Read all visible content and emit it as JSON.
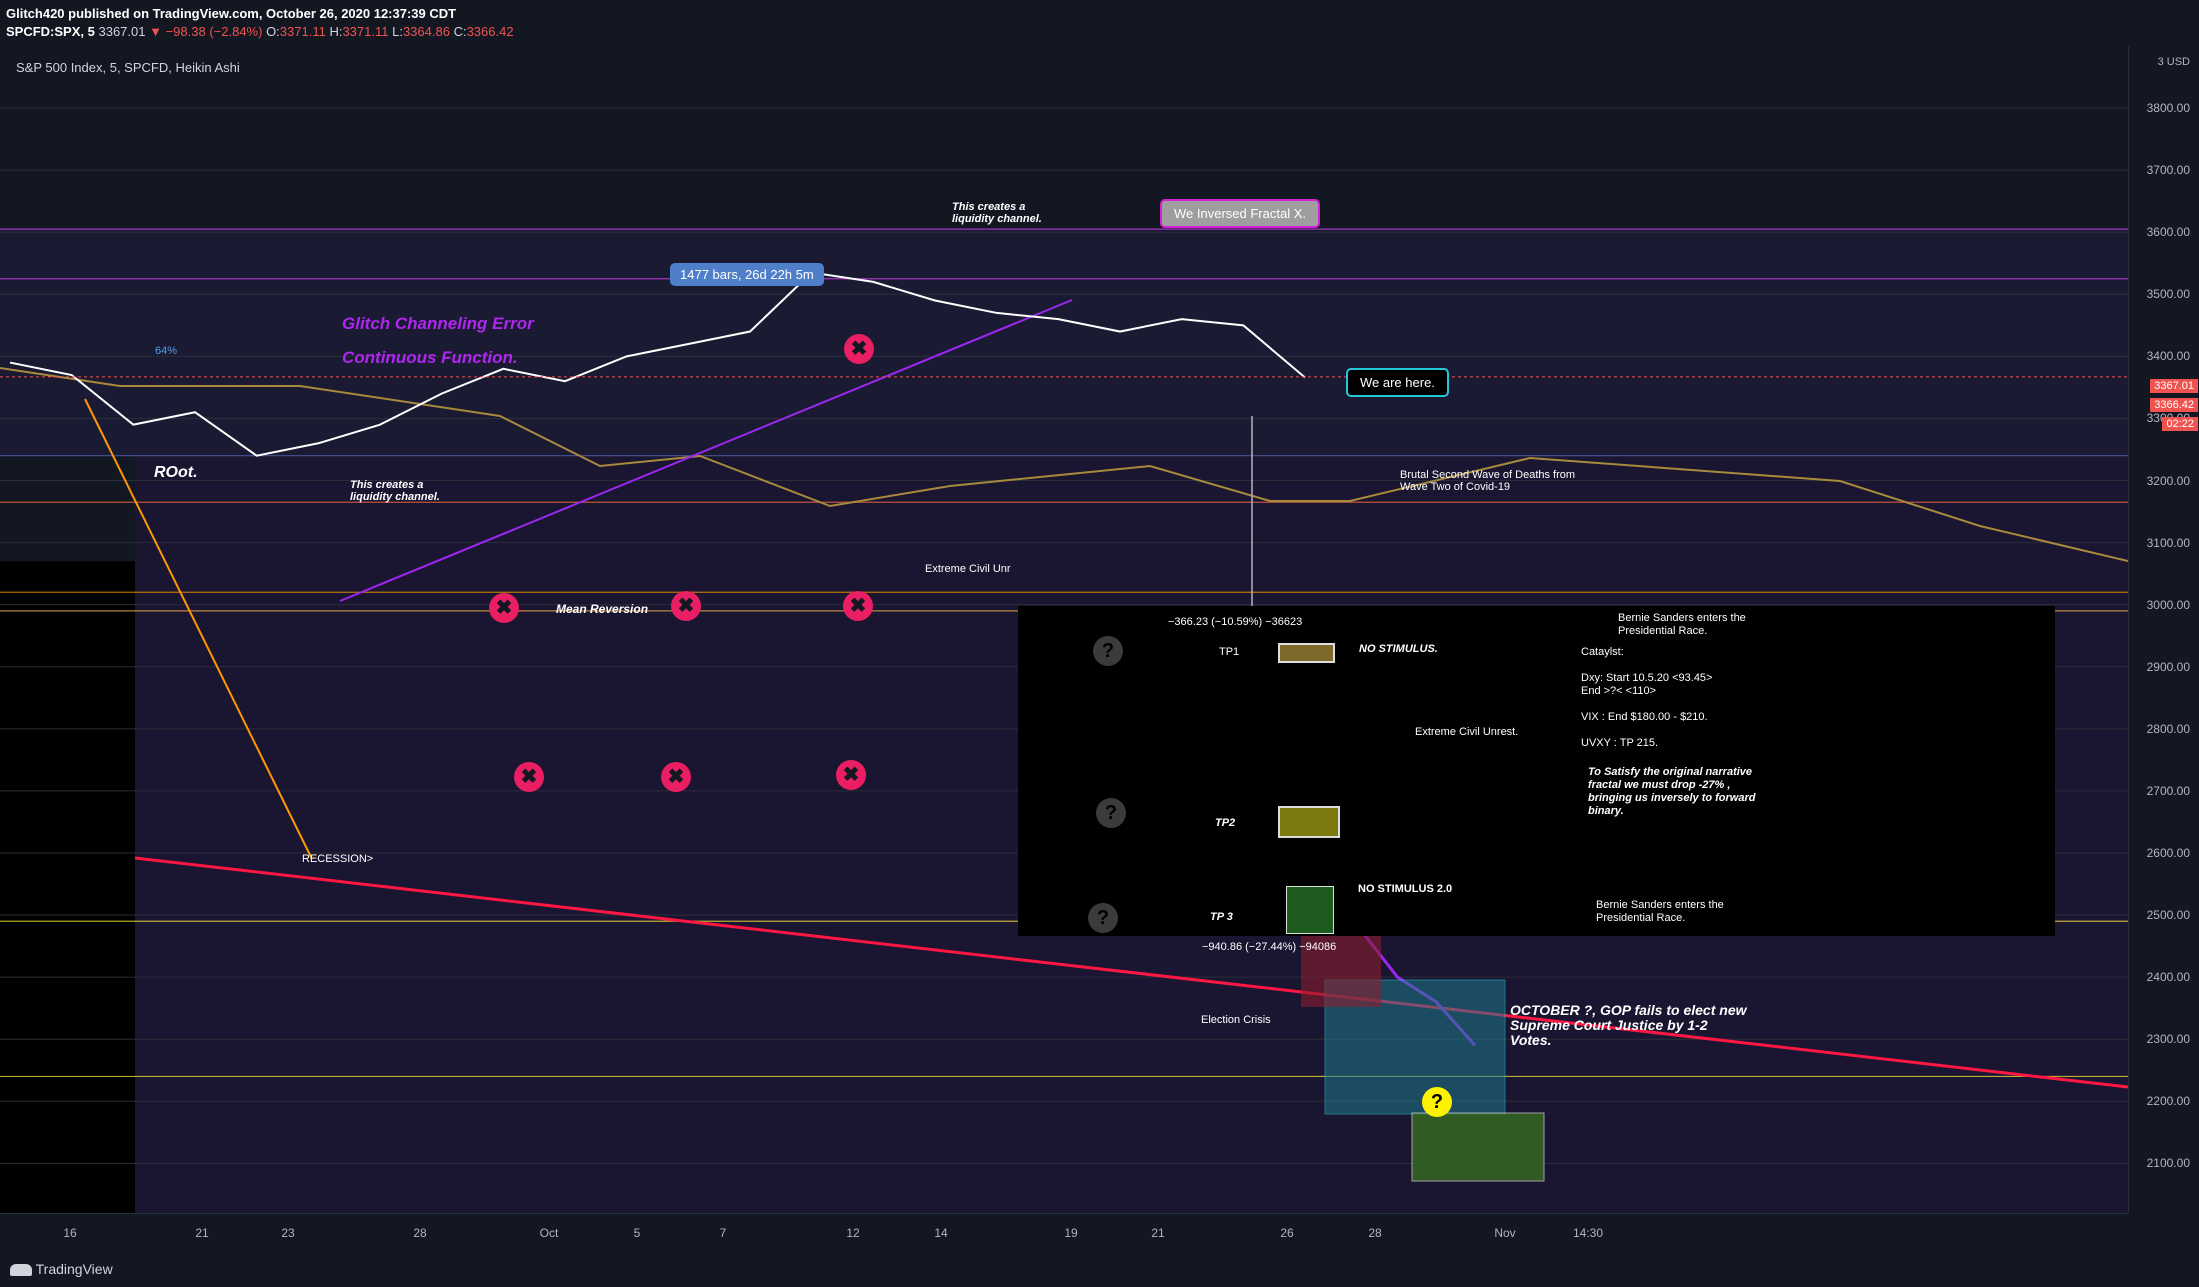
{
  "header": {
    "publisher_line": "Glitch420 published on TradingView.com, October 26, 2020 12:37:39 CDT",
    "symbol": "SPCFD:SPX, 5",
    "last": "3367.01",
    "change": "▼ −98.38 (−2.84%)",
    "o_label": "O:",
    "o_val": "3371.11",
    "h_label": "H:",
    "h_val": "3371.11",
    "l_label": "L:",
    "l_val": "3364.86",
    "c_label": "C:",
    "c_val": "3366.42"
  },
  "chart_title": "S&P 500 Index, 5, SPCFD, Heikin Ashi",
  "chart_data": {
    "type": "line",
    "title": "S&P 500 Index, 5, SPCFD, Heikin Ashi",
    "ylabel": "USD",
    "ylim": [
      2020,
      3900
    ],
    "y_ticks": [
      "3800.00",
      "3700.00",
      "3600.00",
      "3500.00",
      "3400.00",
      "3300.00",
      "3200.00",
      "3100.00",
      "3000.00",
      "2900.00",
      "2800.00",
      "2700.00",
      "2600.00",
      "2500.00",
      "2400.00",
      "2300.00",
      "2200.00",
      "2100.00"
    ],
    "y_tick_values": [
      3800,
      3700,
      3600,
      3500,
      3400,
      3300,
      3200,
      3100,
      3000,
      2900,
      2800,
      2700,
      2600,
      2500,
      2400,
      2300,
      2200,
      2100
    ],
    "x_ticks": [
      "16",
      "21",
      "23",
      "28",
      "Oct",
      "5",
      "7",
      "12",
      "14",
      "19",
      "21",
      "26",
      "28",
      "Nov",
      "14:30"
    ],
    "price_series": {
      "name": "SPX",
      "x": [
        "Sep 16",
        "Sep 18",
        "Sep 21",
        "Sep 22",
        "Sep 23",
        "Sep 24",
        "Sep 25",
        "Sep 28",
        "Sep 30",
        "Oct 2",
        "Oct 5",
        "Oct 7",
        "Oct 8",
        "Oct 12",
        "Oct 13",
        "Oct 15",
        "Oct 19",
        "Oct 20",
        "Oct 21",
        "Oct 22",
        "Oct 23",
        "Oct 26"
      ],
      "y": [
        3390,
        3370,
        3290,
        3310,
        3240,
        3260,
        3290,
        3340,
        3380,
        3360,
        3400,
        3420,
        3440,
        3535,
        3520,
        3490,
        3470,
        3460,
        3440,
        3460,
        3450,
        3366
      ]
    },
    "projection_series": {
      "name": "projection",
      "x": [
        "Oct 26",
        "Oct 27",
        "Oct 28",
        "Oct 29",
        "Oct 30"
      ],
      "y": [
        2590,
        2480,
        2400,
        2360,
        2290
      ]
    },
    "price_tags": [
      "3367.01",
      "3366.42",
      "02:22"
    ],
    "horizontal_levels": [
      3605,
      3525,
      3240,
      3165,
      3020,
      2990,
      2490,
      2240
    ]
  },
  "annotations": {
    "we_inversed": "We Inversed Fractal X.",
    "we_are_here": "We are here.",
    "bars_info": "1477 bars, 26d 22h 5m",
    "liquidity_1": "This creates a\nliquidity channel.",
    "liquidity_2": "This creates a\nliquidity channel.",
    "glitch_channel": "Glitch Channeling Error",
    "continuous": "Continuous Function.",
    "root": "ROot.",
    "mean_reversion": "Mean Reversion",
    "recession": "RECESSION>",
    "brutal_wave": "Brutal Second Wave of Deaths from\nWave Two of Covid-19",
    "extreme_unrest_top": "Extreme Civil Unr",
    "measure_top": "−366.23 (−10.59%) −36623",
    "measure_bottom": "−940.86 (−27.44%) −94086",
    "election_crisis": "Election Crisis",
    "october_note": "OCTOBER ?, GOP fails to elect new\nSupreme Court Justice by 1-2\nVotes.",
    "percent_tag": "64%"
  },
  "overlay": {
    "tp1": "TP1",
    "tp2": "TP2",
    "tp3": "TP 3",
    "no_stimulus": "NO STIMULUS.",
    "no_stimulus_2": "NO STIMULUS 2.0",
    "bernie_top": "Bernie Sanders enters the\nPresidential Race.",
    "bernie_bottom": "Bernie Sanders enters the\nPresidential Race.",
    "catalyst": "Cataylst:\n\nDxy: Start 10.5.20 <93.45>\nEnd >?< <110>\n\nVIX : End $180.00 - $210.\n\nUVXY : TP 215.",
    "extreme_unrest": "Extreme Civil Unrest.",
    "satisfy": "To Satisfy the original narrative\nfractal we must drop -27% ,\nbringing us inversely to forward\nbinary."
  },
  "footer": {
    "brand": "TradingView"
  },
  "axis": {
    "currency": "USD",
    "scale_top": "3"
  },
  "colors": {
    "background": "#131722",
    "price_line": "#ffffff",
    "projection": "#9c27f0",
    "red_trend": "#ff1744",
    "x_marker": "#e91e63",
    "moving_avg": "#a88a3c"
  }
}
